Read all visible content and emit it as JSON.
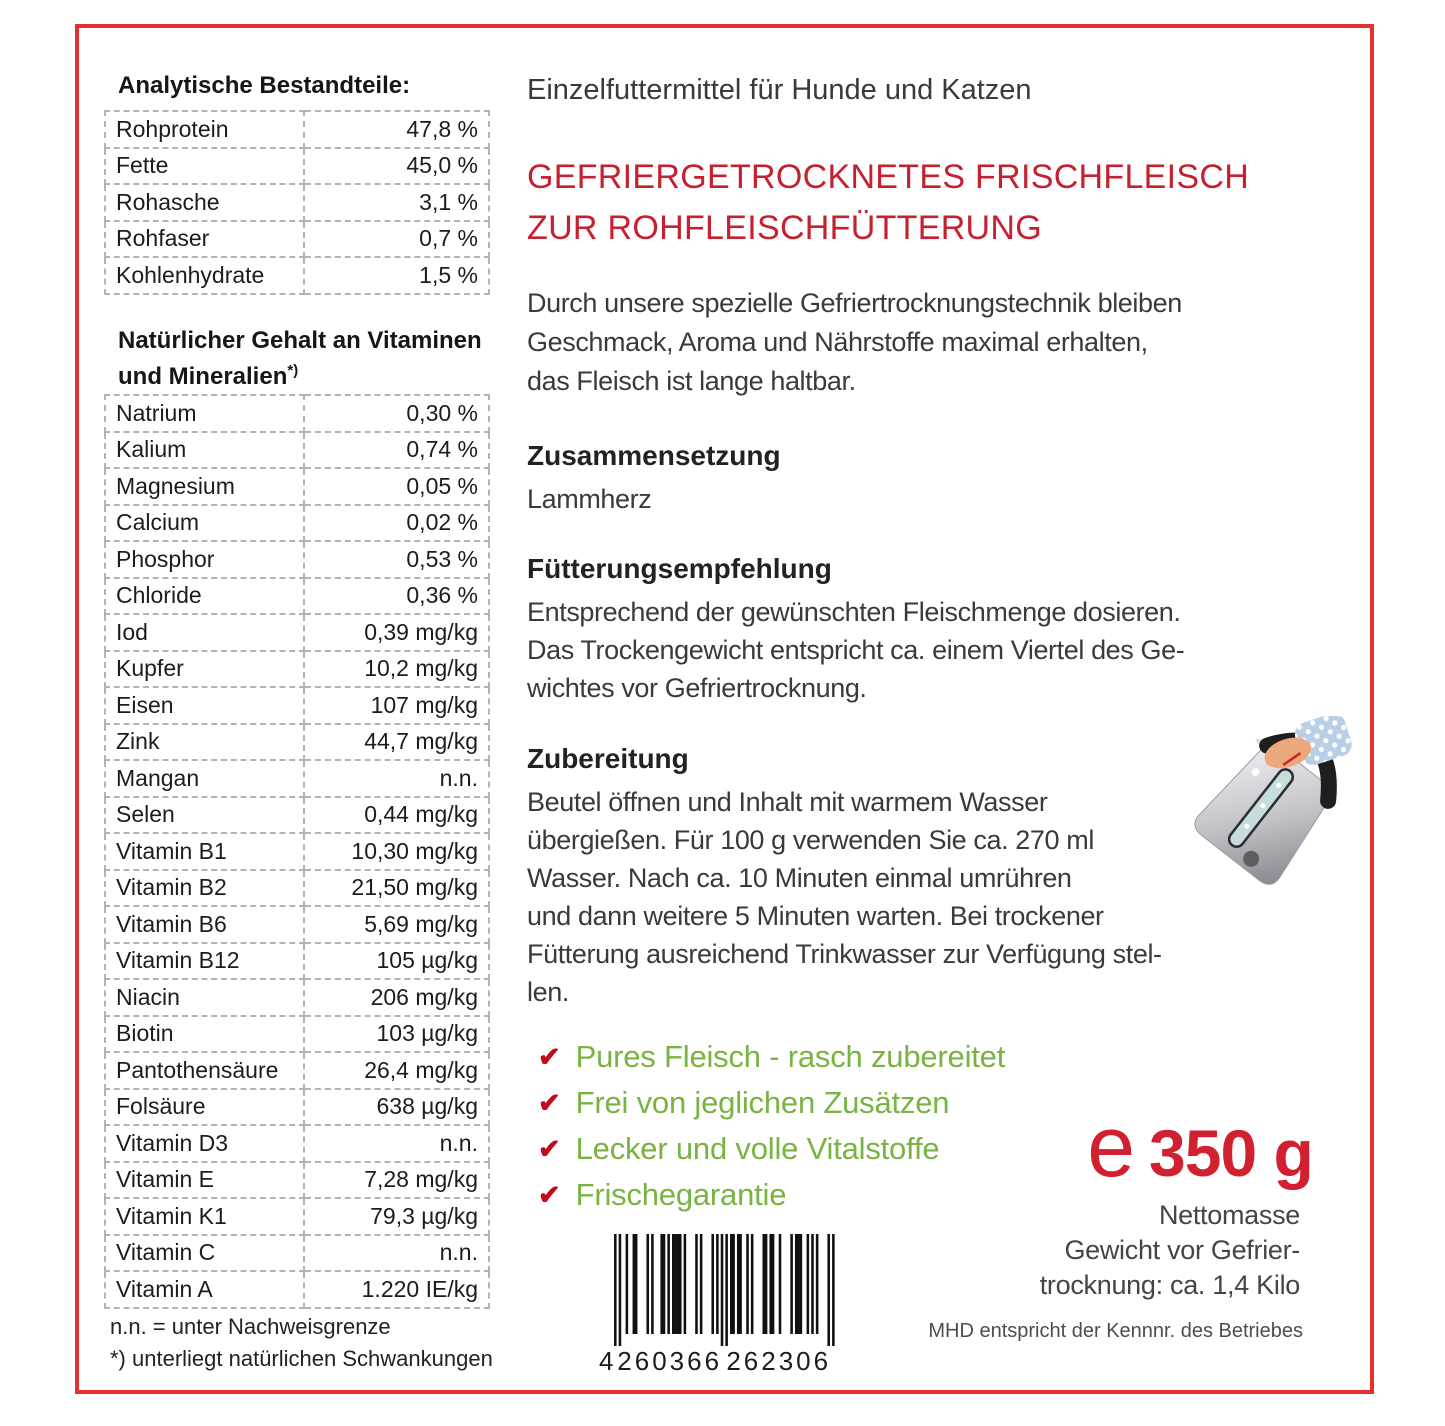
{
  "colors": {
    "border_red": "#e53030",
    "title_red": "#c5202f",
    "weight_red": "#d1202f",
    "check_red": "#c00d1e",
    "list_green": "#79b342"
  },
  "analytical": {
    "heading": "Analytische Bestandteile:",
    "rows": [
      {
        "label": "Rohprotein",
        "value": "47,8 %"
      },
      {
        "label": "Fette",
        "value": "45,0 %"
      },
      {
        "label": "Rohasche",
        "value": "3,1 %"
      },
      {
        "label": "Rohfaser",
        "value": "0,7 %"
      },
      {
        "label": "Kohlenhydrate",
        "value": "1,5 %"
      }
    ]
  },
  "vitamins": {
    "heading": "Natürlicher Gehalt an Vitaminen\nund Mineralien",
    "heading_sup": "*)",
    "rows": [
      {
        "label": "Natrium",
        "value": "0,30 %"
      },
      {
        "label": "Kalium",
        "value": "0,74 %"
      },
      {
        "label": "Magnesium",
        "value": "0,05 %"
      },
      {
        "label": "Calcium",
        "value": "0,02 %"
      },
      {
        "label": "Phosphor",
        "value": "0,53 %"
      },
      {
        "label": "Chloride",
        "value": "0,36 %"
      },
      {
        "label": "Iod",
        "value": "0,39 mg/kg"
      },
      {
        "label": "Kupfer",
        "value": "10,2 mg/kg"
      },
      {
        "label": "Eisen",
        "value": "107 mg/kg"
      },
      {
        "label": "Zink",
        "value": "44,7 mg/kg"
      },
      {
        "label": "Mangan",
        "value": "n.n."
      },
      {
        "label": "Selen",
        "value": "0,44 mg/kg"
      },
      {
        "label": "Vitamin B1",
        "value": "10,30 mg/kg"
      },
      {
        "label": "Vitamin B2",
        "value": "21,50 mg/kg"
      },
      {
        "label": "Vitamin B6",
        "value": "5,69 mg/kg"
      },
      {
        "label": "Vitamin B12",
        "value": "105 µg/kg"
      },
      {
        "label": "Niacin",
        "value": "206 mg/kg"
      },
      {
        "label": "Biotin",
        "value": "103 µg/kg"
      },
      {
        "label": "Pantothensäure",
        "value": "26,4 mg/kg"
      },
      {
        "label": "Folsäure",
        "value": "638 µg/kg"
      },
      {
        "label": "Vitamin D3",
        "value": "n.n."
      },
      {
        "label": "Vitamin E",
        "value": "7,28 mg/kg"
      },
      {
        "label": "Vitamin K1",
        "value": "79,3 µg/kg"
      },
      {
        "label": "Vitamin C",
        "value": "n.n."
      },
      {
        "label": "Vitamin A",
        "value": "1.220 IE/kg"
      }
    ]
  },
  "footnotes": [
    "n.n. = unter Nachweisgrenze",
    "*) unterliegt natürlichen Schwankungen"
  ],
  "right": {
    "intro": "Einzelfuttermittel für Hunde und Katzen",
    "title": "GEFRIERGETROCKNETES FRISCHFLEISCH\nZUR ROHFLEISCHFÜTTERUNG",
    "description": "Durch unsere spezielle Gefriertrocknungstechnik bleiben\nGeschmack, Aroma und Nährstoffe maximal erhalten,\ndas Fleisch ist lange haltbar.",
    "sections": {
      "composition": {
        "heading": "Zusammensetzung",
        "body": "Lammherz"
      },
      "feeding": {
        "heading": "Fütterungsempfehlung",
        "body": "Entsprechend der gewünschten Fleischmenge dosieren.\nDas Trockengewicht entspricht ca. einem Viertel des Ge-\nwichtes vor Gefriertrocknung."
      },
      "preparation": {
        "heading": "Zubereitung",
        "body": "Beutel öffnen und Inhalt mit warmem Wasser\nübergießen. Für 100 g verwenden Sie ca. 270 ml\nWasser. Nach ca. 10 Minuten einmal umrühren\nund dann weitere 5 Minuten warten.  Bei trockener\nFütterung ausreichend Trinkwasser zur Verfügung stel-\nlen."
      }
    },
    "checklist": [
      "Pures Fleisch - rasch zubereitet",
      "Frei von jeglichen Zusätzen",
      "Lecker und volle Vitalstoffe",
      "Frischegarantie"
    ],
    "check_glyph": "✔",
    "weight": {
      "esign": "e",
      "value": "350 g",
      "sub": "Nettomasse\nGewicht vor Gefrier-\ntrocknung: ca. 1,4 Kilo"
    },
    "mhd": "MHD entspricht der  Kennnr. des Betriebes",
    "barcode": {
      "digit_first": "4",
      "digits_left": "260366",
      "digits_right": "262306",
      "pattern": "10100100110000101000110101111010000101000010101010110110010100001101100100001011100101010000101"
    }
  },
  "icons": {
    "kettle": "kettle-pouring-with-hand"
  }
}
